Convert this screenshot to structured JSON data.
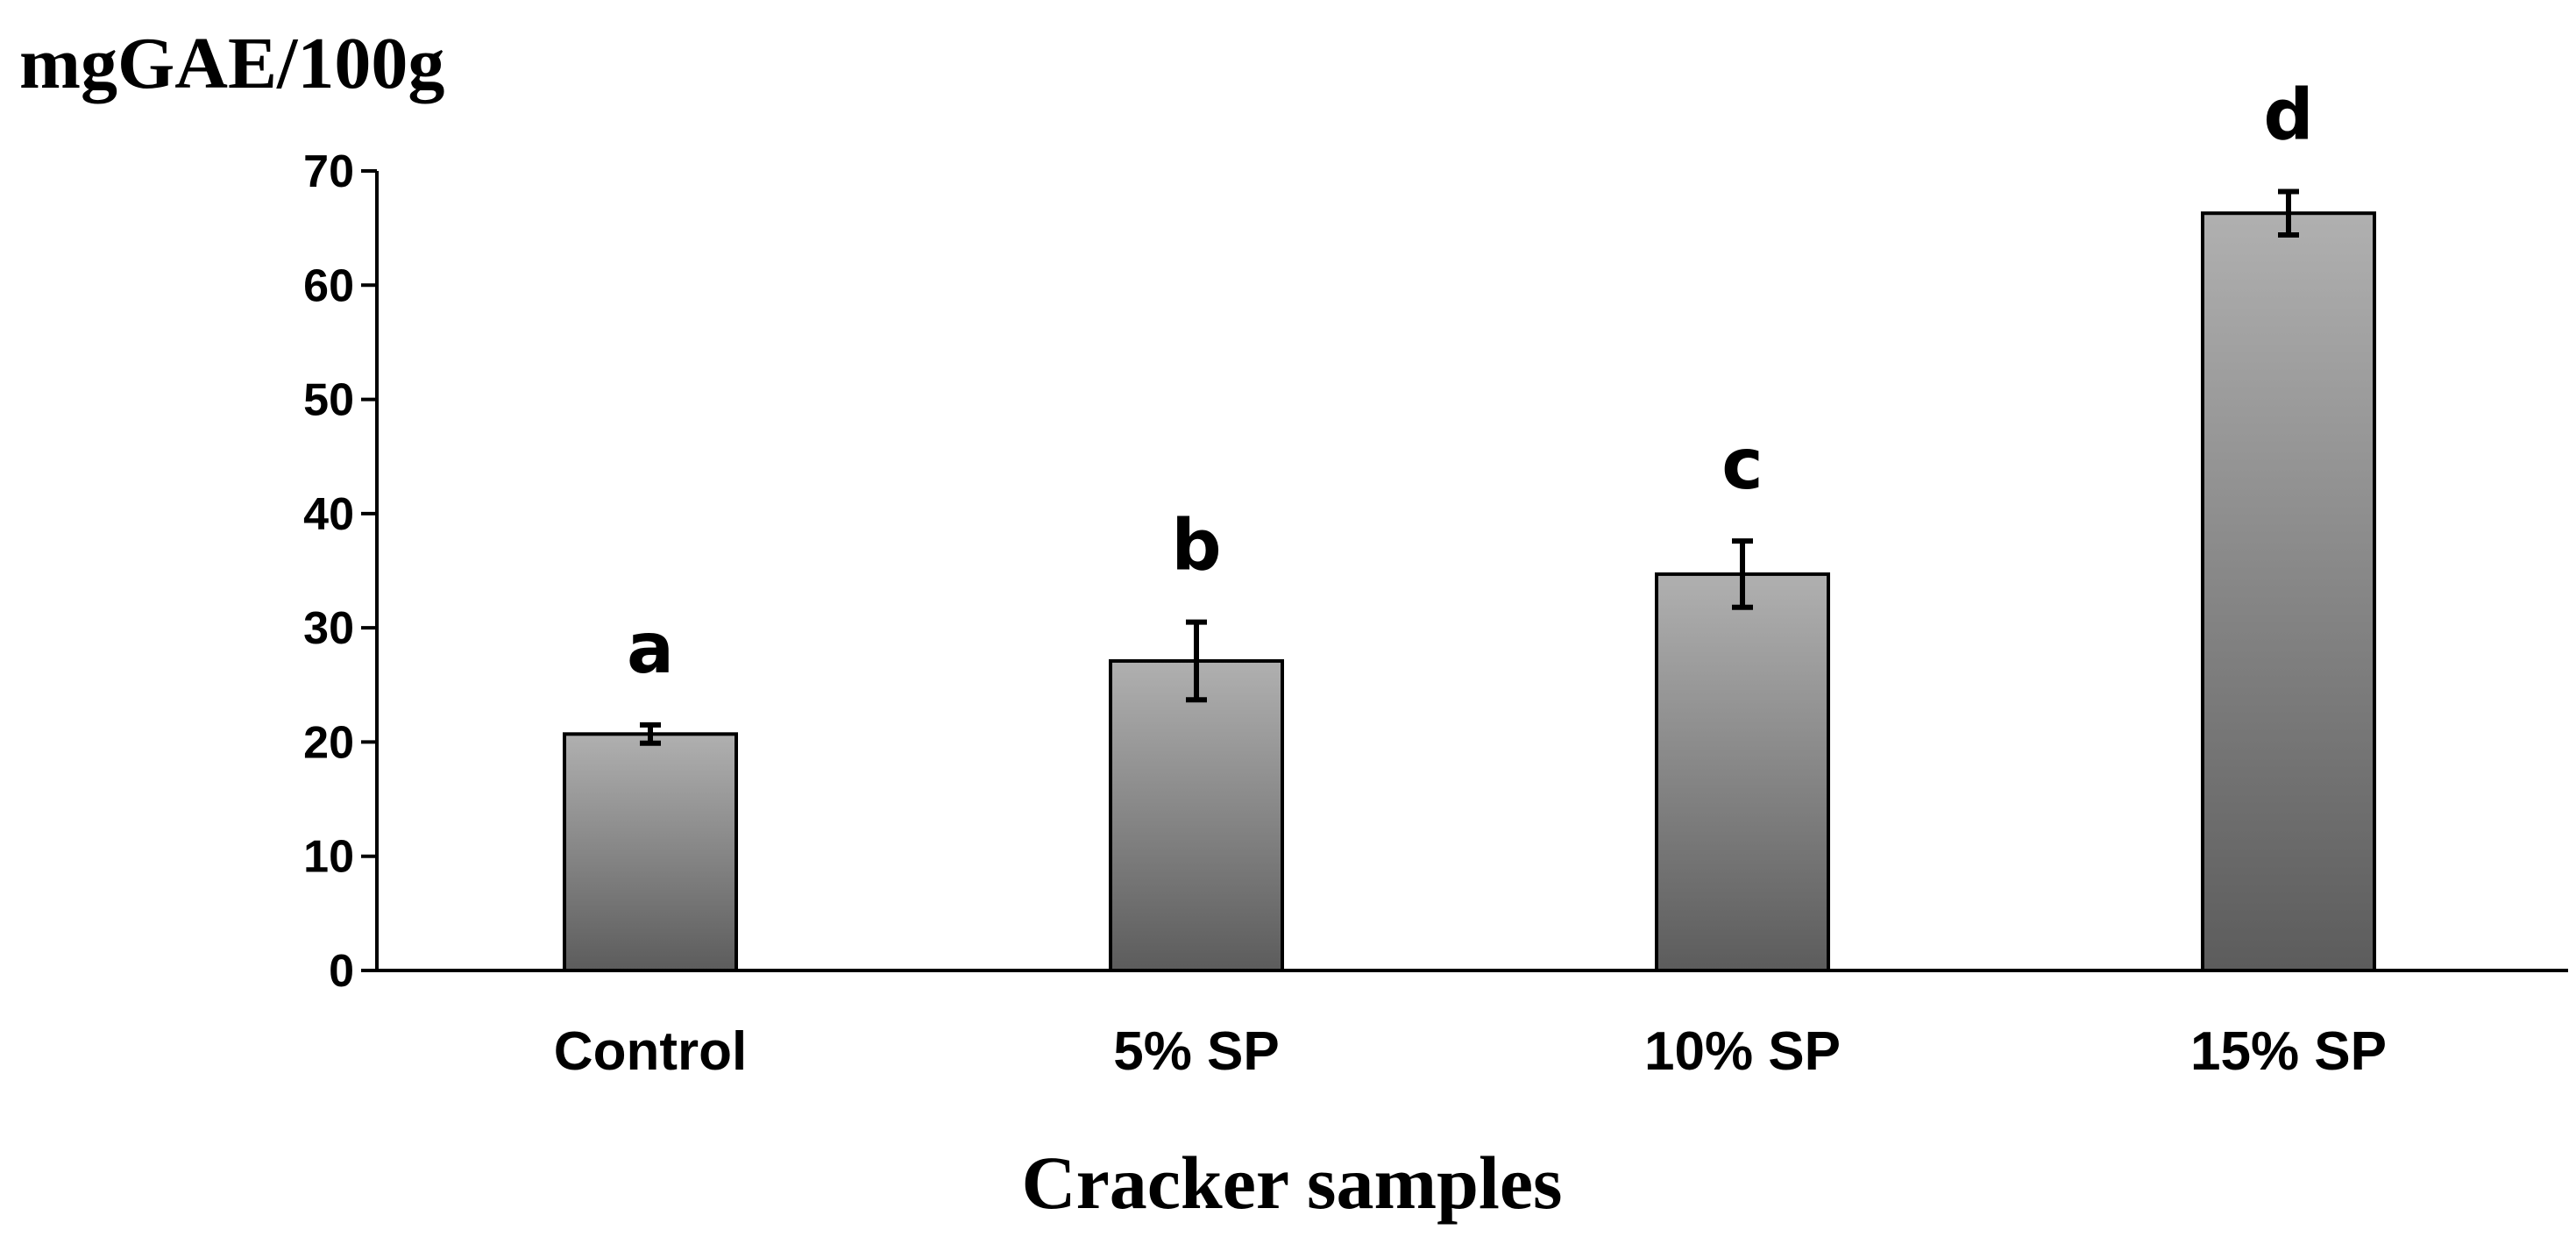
{
  "chart_data": {
    "type": "bar",
    "title": "",
    "ylabel": "mgGAE/100g",
    "xlabel": "Cracker samples",
    "categories": [
      "Control",
      "5% SP",
      "10% SP",
      "15% SP"
    ],
    "values": [
      20.7,
      27.1,
      34.7,
      66.3
    ],
    "errors": [
      0.8,
      3.4,
      2.9,
      1.9
    ],
    "significance": [
      "a",
      "b",
      "c",
      "d"
    ],
    "ylim": [
      0,
      70
    ],
    "yticks": [
      0,
      10,
      20,
      30,
      40,
      50,
      60,
      70
    ],
    "grid": false,
    "legend": "none",
    "bar_gradient": [
      "#b0b0b0",
      "#5c5c5c"
    ]
  }
}
